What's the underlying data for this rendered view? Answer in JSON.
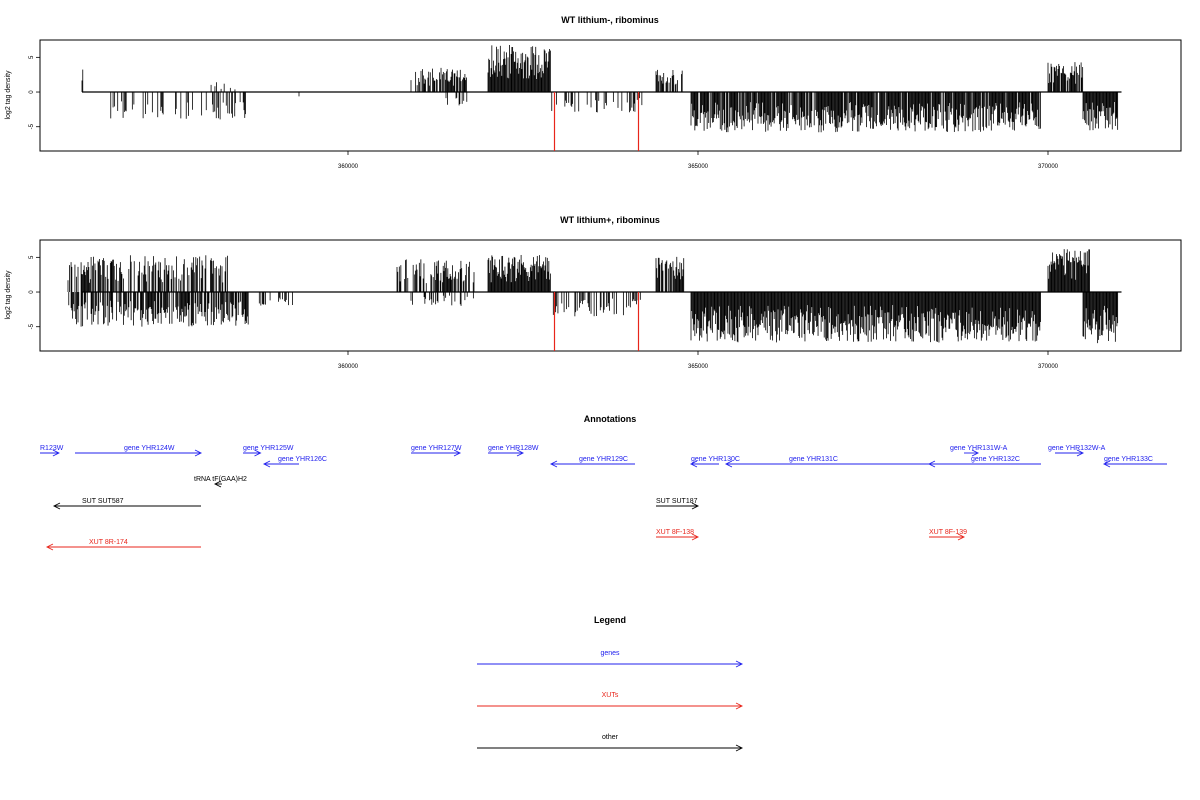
{
  "chart_data": [
    {
      "type": "bar",
      "title": "WT lithium-, ribominus",
      "ylabel": "log2 tag density",
      "xlabel": "",
      "xlim": [
        355600,
        371900
      ],
      "ylim": [
        -8.5,
        7.5
      ],
      "xticks": [
        360000,
        365000,
        370000
      ],
      "yticks": [
        -5,
        0,
        5
      ],
      "ytick_labels": [
        "-5",
        "0",
        "5"
      ],
      "grid": false,
      "series": [
        {
          "color": "#000000",
          "segments": [
            {
              "from": 356200,
              "to": 356300,
              "strand": "+",
              "max": 4.0,
              "density": 0.5
            },
            {
              "from": 356600,
              "to": 358600,
              "strand": "-",
              "max": 4.0,
              "density": 0.25
            },
            {
              "from": 358000,
              "to": 358400,
              "strand": "+",
              "max": 1.5,
              "density": 0.3
            },
            {
              "from": 359300,
              "to": 359310,
              "strand": "-",
              "max": 1.0,
              "density": 1.0
            },
            {
              "from": 360900,
              "to": 361700,
              "strand": "+",
              "max": 3.5,
              "density": 0.6
            },
            {
              "from": 361400,
              "to": 361700,
              "strand": "-",
              "max": 2.0,
              "density": 0.3
            },
            {
              "from": 362000,
              "to": 362900,
              "strand": "+",
              "max": 6.8,
              "density": 1.0
            },
            {
              "from": 362900,
              "to": 364200,
              "strand": "-",
              "max": 3.0,
              "density": 0.3
            },
            {
              "from": 364400,
              "to": 364800,
              "strand": "+",
              "max": 3.4,
              "density": 0.6
            },
            {
              "from": 364900,
              "to": 369900,
              "strand": "-",
              "max": 5.8,
              "density": 0.9
            },
            {
              "from": 370000,
              "to": 370500,
              "strand": "+",
              "max": 4.4,
              "density": 0.9
            },
            {
              "from": 370500,
              "to": 371000,
              "strand": "-",
              "max": 5.6,
              "density": 1.0
            }
          ]
        },
        {
          "color": "#e8251b",
          "highlights": [
            {
              "x": 362950,
              "value": -8.5
            },
            {
              "x": 364150,
              "value": -8.5
            }
          ]
        }
      ]
    },
    {
      "type": "bar",
      "title": "WT lithium+, ribominus",
      "ylabel": "log2 tag density",
      "xlabel": "",
      "xlim": [
        355600,
        371900
      ],
      "ylim": [
        -8.5,
        7.5
      ],
      "xticks": [
        360000,
        365000,
        370000
      ],
      "yticks": [
        -5,
        0,
        5
      ],
      "ytick_labels": [
        "-5",
        "0",
        "5"
      ],
      "grid": false,
      "series": [
        {
          "color": "#000000",
          "segments": [
            {
              "from": 356000,
              "to": 358300,
              "strand": "+",
              "max": 5.3,
              "density": 0.6
            },
            {
              "from": 356000,
              "to": 358600,
              "strand": "-",
              "max": 5.0,
              "density": 0.7
            },
            {
              "from": 358700,
              "to": 359300,
              "strand": "-",
              "max": 2.0,
              "density": 0.3
            },
            {
              "from": 360700,
              "to": 361800,
              "strand": "+",
              "max": 4.8,
              "density": 0.7
            },
            {
              "from": 360900,
              "to": 361800,
              "strand": "-",
              "max": 2.0,
              "density": 0.3
            },
            {
              "from": 362000,
              "to": 362900,
              "strand": "+",
              "max": 5.5,
              "density": 1.0
            },
            {
              "from": 362900,
              "to": 364200,
              "strand": "-",
              "max": 3.5,
              "density": 0.35
            },
            {
              "from": 364400,
              "to": 364800,
              "strand": "+",
              "max": 5.4,
              "density": 0.7
            },
            {
              "from": 364900,
              "to": 369900,
              "strand": "-",
              "max": 7.3,
              "density": 1.0
            },
            {
              "from": 370000,
              "to": 370600,
              "strand": "+",
              "max": 6.2,
              "density": 1.0
            },
            {
              "from": 370500,
              "to": 371000,
              "strand": "-",
              "max": 7.5,
              "density": 1.0
            }
          ]
        },
        {
          "color": "#e8251b",
          "highlights": [
            {
              "x": 362950,
              "value": -8.5
            },
            {
              "x": 364150,
              "value": -8.5
            }
          ]
        }
      ]
    }
  ],
  "annotations": {
    "title": "Annotations",
    "colors": {
      "genes": "#2020ee",
      "XUTs": "#e8251b",
      "other": "#000000"
    },
    "features": [
      {
        "label": "R123W",
        "type": "genes",
        "strand": "+",
        "from": 355600,
        "to": 355870,
        "lx": 355600,
        "row": 1
      },
      {
        "label": "gene YHR124W",
        "type": "genes",
        "strand": "+",
        "from": 356100,
        "to": 357900,
        "lx": 356800,
        "row": 1
      },
      {
        "label": "gene YHR125W",
        "type": "genes",
        "strand": "+",
        "from": 358500,
        "to": 358750,
        "lx": 358500,
        "row": 1
      },
      {
        "label": "gene YHR126C",
        "type": "genes",
        "strand": "-",
        "from": 358800,
        "to": 359300,
        "lx": 359000,
        "row": 2
      },
      {
        "label": "gene YHR127W",
        "type": "genes",
        "strand": "+",
        "from": 360900,
        "to": 361600,
        "lx": 360900,
        "row": 1
      },
      {
        "label": "gene YHR128W",
        "type": "genes",
        "strand": "+",
        "from": 362000,
        "to": 362500,
        "lx": 362000,
        "row": 1
      },
      {
        "label": "gene YHR129C",
        "type": "genes",
        "strand": "-",
        "from": 362900,
        "to": 364100,
        "lx": 363300,
        "row": 2
      },
      {
        "label": "gene YHR130C",
        "type": "genes",
        "strand": "-",
        "from": 364900,
        "to": 365300,
        "lx": 364900,
        "row": 2
      },
      {
        "label": "gene YHR131C",
        "type": "genes",
        "strand": "-",
        "from": 365400,
        "to": 368800,
        "lx": 366300,
        "row": 2
      },
      {
        "label": "gene YHR131W-A",
        "type": "genes",
        "strand": "+",
        "from": 368800,
        "to": 369000,
        "lx": 368600,
        "row": 1
      },
      {
        "label": "gene YHR132C",
        "type": "genes",
        "strand": "-",
        "from": 368300,
        "to": 369900,
        "lx": 368900,
        "row": 2
      },
      {
        "label": "gene YHR132W-A",
        "type": "genes",
        "strand": "+",
        "from": 370100,
        "to": 370500,
        "lx": 370000,
        "row": 1
      },
      {
        "label": "gene YHR133C",
        "type": "genes",
        "strand": "-",
        "from": 370800,
        "to": 371700,
        "lx": 370800,
        "row": 2
      },
      {
        "label": "tRNA tF(GAA)H2",
        "type": "other",
        "strand": "-",
        "from": 358100,
        "to": 358200,
        "lx": 357800,
        "row": 3
      },
      {
        "label": "SUT SUT587",
        "type": "other",
        "strand": "-",
        "from": 355800,
        "to": 357900,
        "lx": 356200,
        "row": 4
      },
      {
        "label": "SUT SUT187",
        "type": "other",
        "strand": "+",
        "from": 364400,
        "to": 365000,
        "lx": 364400,
        "row": 4
      },
      {
        "label": "XUT 8R-174",
        "type": "XUTs",
        "strand": "-",
        "from": 355700,
        "to": 357900,
        "lx": 356300,
        "row": 5
      },
      {
        "label": "XUT 8F-138",
        "type": "XUTs",
        "strand": "+",
        "from": 364400,
        "to": 365000,
        "lx": 364400,
        "row": 6
      },
      {
        "label": "XUT 8F-139",
        "type": "XUTs",
        "strand": "+",
        "from": 368300,
        "to": 368800,
        "lx": 368300,
        "row": 6
      }
    ]
  },
  "legend": {
    "title": "Legend",
    "items": [
      {
        "label": "genes",
        "color": "#2020ee"
      },
      {
        "label": "XUTs",
        "color": "#e8251b"
      },
      {
        "label": "other",
        "color": "#000000"
      }
    ]
  }
}
